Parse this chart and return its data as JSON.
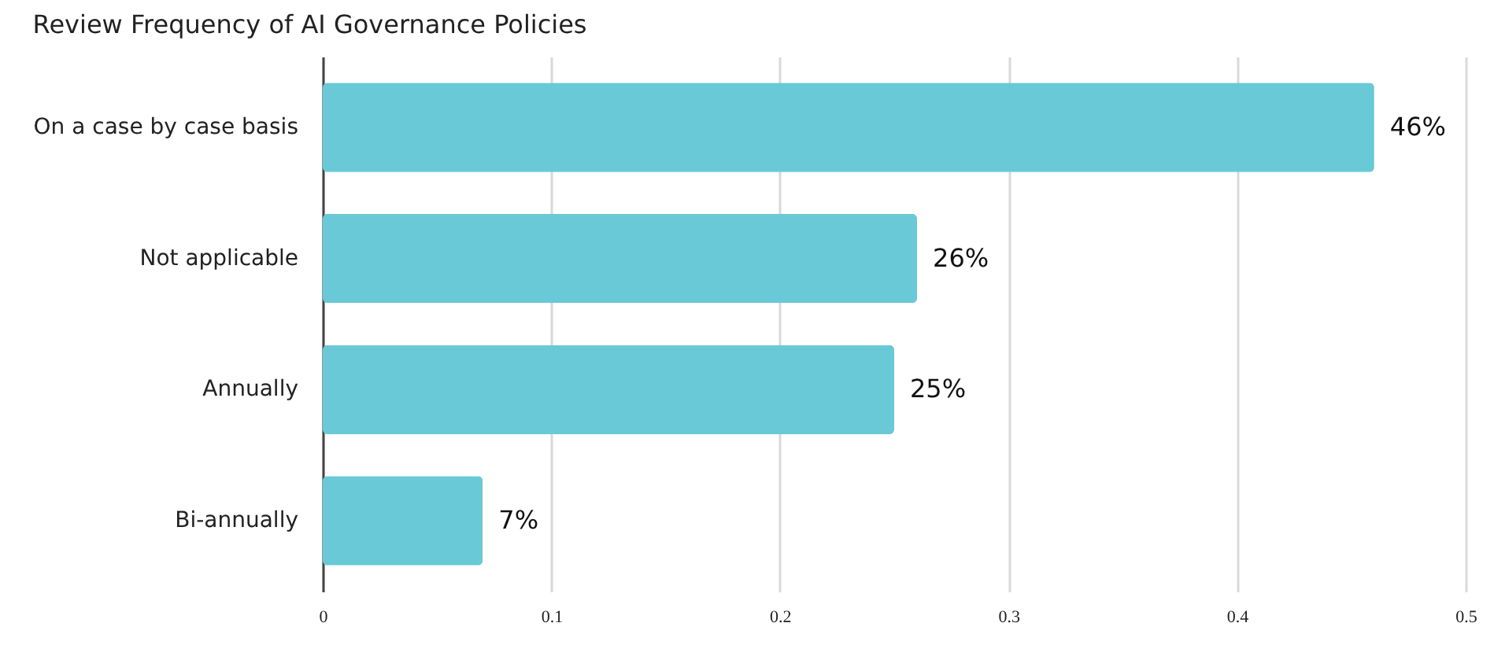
{
  "chart_data": {
    "type": "bar",
    "orientation": "horizontal",
    "title": "Review Frequency of AI Governance Policies",
    "categories": [
      "On a case by case basis",
      "Not applicable",
      "Annually",
      "Bi-annually"
    ],
    "values": [
      0.46,
      0.26,
      0.25,
      0.07
    ],
    "value_labels": [
      "46%",
      "26%",
      "25%",
      "7%"
    ],
    "color": "#69c9d6",
    "xlim": [
      0,
      0.5
    ],
    "xticks": [
      0,
      0.1,
      0.2,
      0.3,
      0.4,
      0.5
    ],
    "grid": "x"
  }
}
